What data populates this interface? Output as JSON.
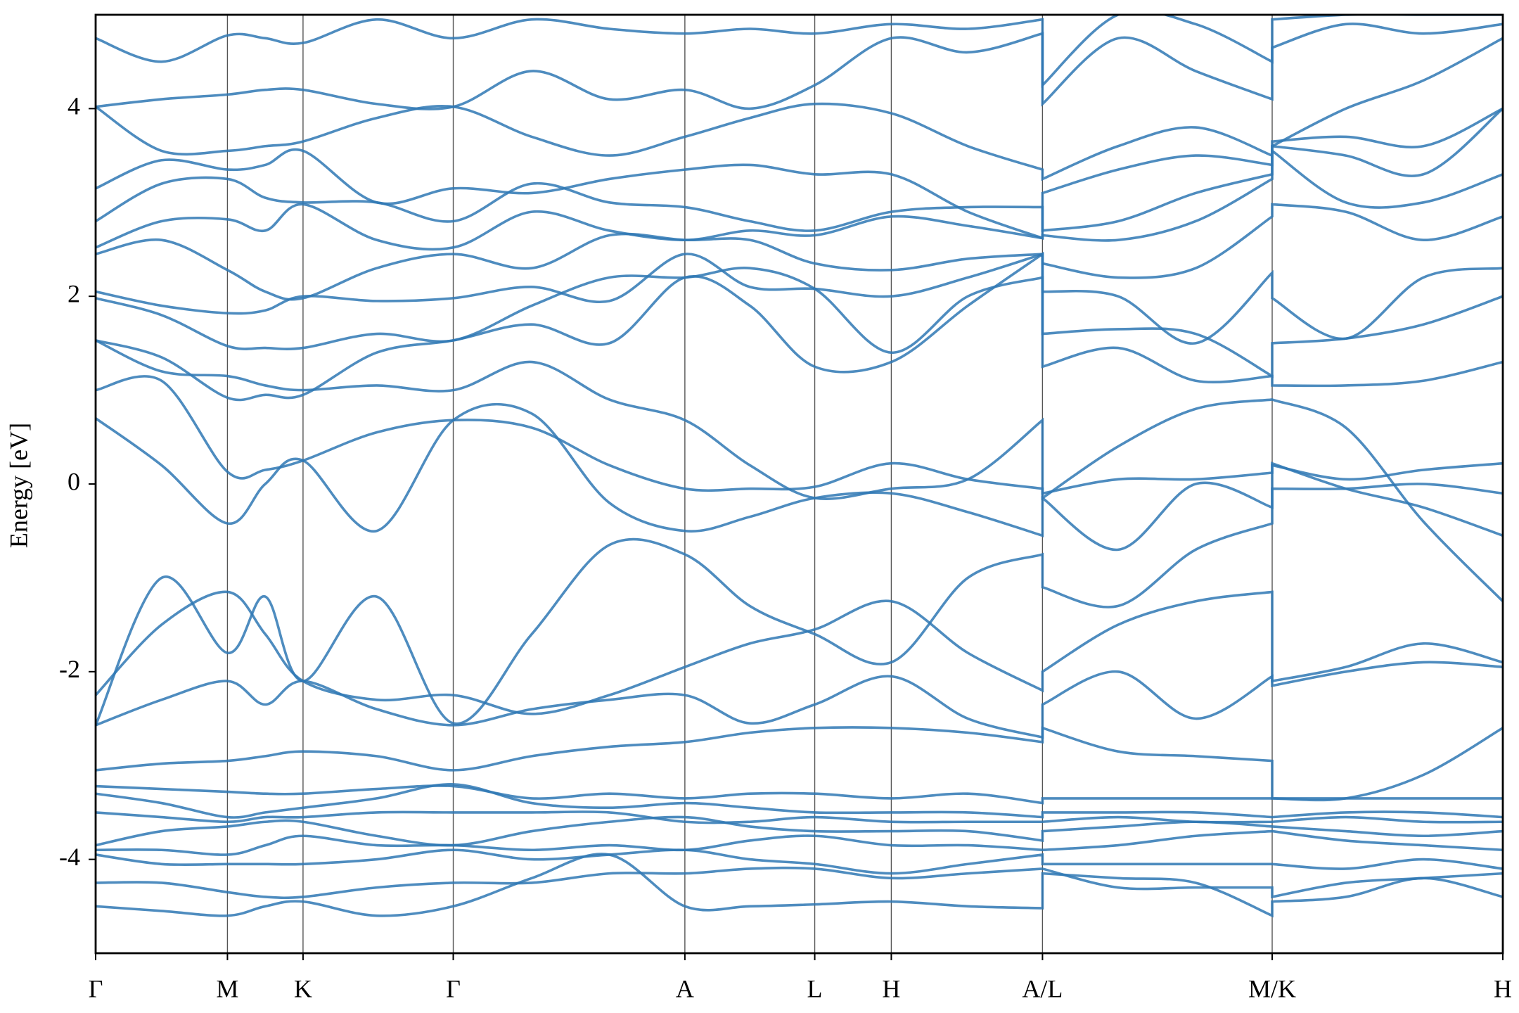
{
  "chart_data": {
    "type": "line",
    "ylabel": "Energy [eV]",
    "color": "#2f78b4",
    "x": [
      0,
      0.68,
      1.36,
      1.75,
      2.14,
      2.9,
      3.69,
      4.5,
      5.3,
      6.08,
      6.75,
      7.42,
      8.21,
      9.0,
      9.77,
      9.77,
      10.55,
      11.35,
      12.14,
      12.14,
      12.9,
      13.7,
      14.52
    ],
    "xlim": [
      0,
      14.52
    ],
    "xticks": [
      {
        "value": 0,
        "label": "Γ"
      },
      {
        "value": 1.36,
        "label": "M"
      },
      {
        "value": 2.14,
        "label": "K"
      },
      {
        "value": 3.69,
        "label": "Γ"
      },
      {
        "value": 6.08,
        "label": "A"
      },
      {
        "value": 7.42,
        "label": "L"
      },
      {
        "value": 8.21,
        "label": "H"
      },
      {
        "value": 9.77,
        "label": "A/L"
      },
      {
        "value": 12.14,
        "label": "M/K"
      },
      {
        "value": 14.52,
        "label": "H"
      }
    ],
    "ylim": [
      -5,
      5
    ],
    "yticks": [
      -4,
      -2,
      0,
      2,
      4
    ],
    "grid": true,
    "series": [
      {
        "values": [
          -4.5,
          -4.55,
          -4.6,
          -4.5,
          -4.45,
          -4.6,
          -4.5,
          -4.2,
          -3.95,
          -4.5,
          -4.5,
          -4.48,
          -4.45,
          -4.5,
          -4.52,
          -4.15,
          -4.2,
          -4.25,
          -4.6,
          -4.45,
          -4.4,
          -4.2,
          -4.4
        ]
      },
      {
        "values": [
          -4.25,
          -4.25,
          -4.35,
          -4.4,
          -4.4,
          -4.3,
          -4.25,
          -4.25,
          -4.15,
          -4.15,
          -4.1,
          -4.1,
          -4.2,
          -4.15,
          -4.1,
          -4.1,
          -4.3,
          -4.3,
          -4.3,
          -4.4,
          -4.25,
          -4.2,
          -4.15
        ]
      },
      {
        "values": [
          -3.95,
          -4.05,
          -4.05,
          -4.05,
          -4.05,
          -4.0,
          -3.9,
          -4.0,
          -3.95,
          -3.9,
          -4.0,
          -4.05,
          -4.15,
          -4.05,
          -3.95,
          -4.05,
          -4.05,
          -4.05,
          -4.05,
          -4.05,
          -4.1,
          -4.0,
          -4.1
        ]
      },
      {
        "values": [
          -3.9,
          -3.9,
          -3.95,
          -3.85,
          -3.75,
          -3.85,
          -3.85,
          -3.9,
          -3.85,
          -3.9,
          -3.8,
          -3.75,
          -3.85,
          -3.85,
          -3.9,
          -3.9,
          -3.85,
          -3.75,
          -3.7,
          -3.7,
          -3.8,
          -3.85,
          -3.9
        ]
      },
      {
        "values": [
          -3.85,
          -3.7,
          -3.65,
          -3.6,
          -3.6,
          -3.75,
          -3.85,
          -3.7,
          -3.6,
          -3.55,
          -3.65,
          -3.7,
          -3.7,
          -3.7,
          -3.8,
          -3.7,
          -3.65,
          -3.6,
          -3.65,
          -3.65,
          -3.7,
          -3.75,
          -3.7
        ]
      },
      {
        "values": [
          -3.5,
          -3.55,
          -3.6,
          -3.55,
          -3.55,
          -3.5,
          -3.5,
          -3.5,
          -3.5,
          -3.6,
          -3.6,
          -3.55,
          -3.6,
          -3.6,
          -3.6,
          -3.6,
          -3.55,
          -3.6,
          -3.6,
          -3.6,
          -3.55,
          -3.6,
          -3.6
        ]
      },
      {
        "values": [
          -3.3,
          -3.4,
          -3.55,
          -3.5,
          -3.45,
          -3.35,
          -3.2,
          -3.4,
          -3.45,
          -3.4,
          -3.45,
          -3.5,
          -3.5,
          -3.5,
          -3.55,
          -3.5,
          -3.5,
          -3.5,
          -3.55,
          -3.55,
          -3.5,
          -3.5,
          -3.55
        ]
      },
      {
        "values": [
          -3.22,
          -3.25,
          -3.28,
          -3.3,
          -3.3,
          -3.25,
          -3.22,
          -3.35,
          -3.3,
          -3.35,
          -3.3,
          -3.3,
          -3.35,
          -3.3,
          -3.4,
          -3.35,
          -3.35,
          -3.35,
          -3.35,
          -3.35,
          -3.35,
          -3.35,
          -3.35
        ]
      },
      {
        "values": [
          -3.05,
          -2.98,
          -2.95,
          -2.9,
          -2.85,
          -2.9,
          -3.05,
          -2.9,
          -2.8,
          -2.75,
          -2.65,
          -2.6,
          -2.6,
          -2.65,
          -2.75,
          -2.6,
          -2.85,
          -2.9,
          -2.95,
          -3.35,
          -3.35,
          -3.1,
          -2.6
        ]
      },
      {
        "values": [
          -2.57,
          -2.3,
          -2.1,
          -2.35,
          -2.1,
          -2.4,
          -2.57,
          -2.4,
          -2.3,
          -2.25,
          -2.55,
          -2.35,
          -2.05,
          -2.5,
          -2.7,
          -2.35,
          -2.0,
          -2.5,
          -2.05,
          -2.15,
          -2.0,
          -1.9,
          -1.95
        ]
      },
      {
        "values": [
          -2.25,
          -1.5,
          -1.15,
          -1.6,
          -2.1,
          -2.3,
          -2.25,
          -2.45,
          -2.25,
          -1.95,
          -1.7,
          -1.55,
          -1.25,
          -1.8,
          -2.2,
          -2.0,
          -1.5,
          -1.25,
          -1.15,
          -2.1,
          -1.95,
          -1.7,
          -1.9
        ]
      },
      {
        "values": [
          -2.57,
          -1.0,
          -1.8,
          -1.2,
          -2.1,
          -1.2,
          -2.55,
          -1.6,
          -0.65,
          -0.75,
          -1.3,
          -1.6,
          -1.9,
          -1.0,
          -0.75,
          -1.1,
          -1.3,
          -0.7,
          -0.42,
          -0.05,
          -0.05,
          0.0,
          -0.1
        ]
      },
      {
        "values": [
          0.7,
          0.2,
          -0.42,
          0.0,
          0.25,
          -0.5,
          0.68,
          0.75,
          -0.2,
          -0.5,
          -0.35,
          -0.15,
          -0.1,
          -0.3,
          -0.55,
          -0.15,
          -0.7,
          0.0,
          -0.25,
          0.2,
          0.05,
          0.15,
          0.22
        ]
      },
      {
        "values": [
          1.0,
          1.1,
          0.13,
          0.15,
          0.25,
          0.55,
          0.68,
          0.6,
          0.2,
          -0.05,
          -0.05,
          -0.03,
          0.22,
          0.05,
          -0.05,
          -0.1,
          0.05,
          0.05,
          0.12,
          0.22,
          -0.05,
          -0.25,
          -0.55
        ]
      },
      {
        "values": [
          1.53,
          1.2,
          1.15,
          1.05,
          1.0,
          1.05,
          1.0,
          1.3,
          0.9,
          0.68,
          0.2,
          -0.15,
          -0.05,
          0.05,
          0.68,
          -0.15,
          0.4,
          0.8,
          0.9,
          0.9,
          0.6,
          -0.4,
          -1.25
        ]
      },
      {
        "values": [
          1.53,
          1.35,
          0.92,
          0.95,
          0.95,
          1.4,
          1.53,
          1.7,
          1.5,
          2.2,
          1.9,
          1.25,
          1.3,
          1.9,
          2.45,
          1.25,
          1.45,
          1.1,
          1.15,
          1.05,
          1.05,
          1.1,
          1.3
        ]
      },
      {
        "values": [
          1.98,
          1.8,
          1.47,
          1.45,
          1.45,
          1.6,
          1.53,
          1.9,
          2.2,
          2.2,
          2.3,
          2.08,
          1.4,
          2.0,
          2.2,
          1.6,
          1.65,
          1.6,
          1.15,
          1.5,
          1.55,
          1.7,
          2.0
        ]
      },
      {
        "values": [
          2.05,
          1.9,
          1.82,
          1.85,
          2.0,
          1.95,
          1.98,
          2.1,
          1.95,
          2.45,
          2.1,
          2.08,
          2.0,
          2.2,
          2.45,
          2.05,
          2.0,
          1.5,
          2.25,
          1.98,
          1.55,
          2.2,
          2.3
        ]
      },
      {
        "values": [
          2.45,
          2.6,
          2.28,
          2.05,
          1.98,
          2.3,
          2.45,
          2.3,
          2.65,
          2.6,
          2.6,
          2.35,
          2.28,
          2.4,
          2.45,
          2.35,
          2.2,
          2.3,
          2.85,
          2.98,
          2.9,
          2.6,
          2.85
        ]
      },
      {
        "values": [
          2.52,
          2.8,
          2.82,
          2.7,
          2.98,
          2.6,
          2.52,
          2.9,
          2.7,
          2.6,
          2.7,
          2.65,
          2.85,
          2.75,
          2.62,
          2.65,
          2.6,
          2.8,
          3.25,
          3.55,
          3.0,
          3.0,
          3.3
        ]
      },
      {
        "values": [
          2.8,
          3.2,
          3.25,
          3.05,
          3.0,
          3.0,
          2.8,
          3.2,
          3.0,
          2.95,
          2.8,
          2.7,
          2.9,
          2.95,
          2.95,
          2.7,
          2.8,
          3.1,
          3.3,
          3.6,
          3.5,
          3.3,
          4.0
        ]
      },
      {
        "values": [
          3.15,
          3.45,
          3.35,
          3.4,
          3.55,
          3.0,
          3.15,
          3.1,
          3.25,
          3.35,
          3.4,
          3.3,
          3.3,
          2.9,
          2.62,
          3.1,
          3.35,
          3.5,
          3.4,
          3.65,
          3.7,
          3.6,
          4.0
        ]
      },
      {
        "values": [
          4.02,
          3.55,
          3.55,
          3.6,
          3.65,
          3.9,
          4.02,
          3.7,
          3.5,
          3.7,
          3.9,
          4.05,
          3.95,
          3.6,
          3.35,
          3.25,
          3.6,
          3.8,
          3.5,
          3.6,
          4.0,
          4.3,
          4.75
        ]
      },
      {
        "values": [
          4.02,
          4.1,
          4.15,
          4.2,
          4.2,
          4.05,
          4.02,
          4.4,
          4.1,
          4.2,
          4.0,
          4.25,
          4.75,
          4.6,
          4.8,
          4.05,
          4.75,
          4.4,
          4.1,
          4.65,
          4.9,
          4.8,
          4.9
        ]
      },
      {
        "values": [
          4.75,
          4.5,
          4.78,
          4.75,
          4.7,
          4.95,
          4.75,
          4.95,
          4.85,
          4.8,
          4.85,
          4.8,
          4.9,
          4.85,
          4.95,
          4.25,
          5.0,
          4.9,
          4.5,
          4.95,
          5.0,
          5.0,
          5.0
        ]
      }
    ]
  }
}
